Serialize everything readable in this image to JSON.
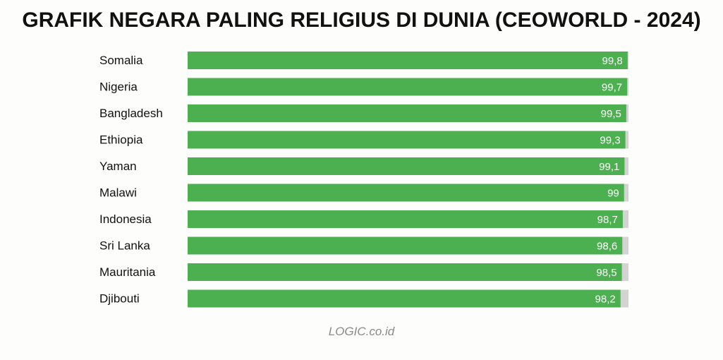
{
  "chart_data": {
    "type": "bar",
    "orientation": "horizontal",
    "title": "GRAFIK NEGARA PALING RELIGIUS DI DUNIA (CEOWORLD - 2024)",
    "categories": [
      "Somalia",
      "Nigeria",
      "Bangladesh",
      "Ethiopia",
      "Yaman",
      "Malawi",
      "Indonesia",
      "Sri Lanka",
      "Mauritania",
      "Djibouti"
    ],
    "values": [
      99.8,
      99.7,
      99.5,
      99.3,
      99.1,
      99,
      98.7,
      98.6,
      98.5,
      98.2
    ],
    "value_labels": [
      "99,8",
      "99,7",
      "99,5",
      "99,3",
      "99,1",
      "99",
      "98,7",
      "98,6",
      "98,5",
      "98,2"
    ],
    "xlim": [
      0,
      100
    ],
    "grid": false,
    "legend": "none",
    "colors": {
      "bar": "#4caf50",
      "track": "#d3d3d3",
      "value_text": "#ffffff",
      "label_text": "#111111"
    }
  },
  "footer": {
    "source": "LOGIC.co.id"
  }
}
